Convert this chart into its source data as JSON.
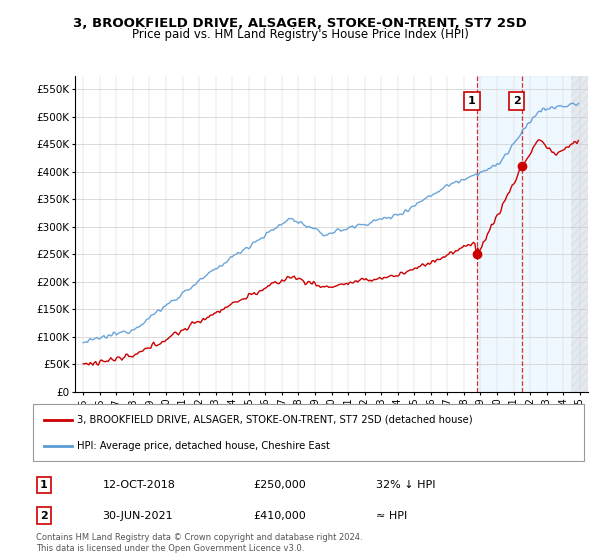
{
  "title": "3, BROOKFIELD DRIVE, ALSAGER, STOKE-ON-TRENT, ST7 2SD",
  "subtitle": "Price paid vs. HM Land Registry's House Price Index (HPI)",
  "ylabel_ticks": [
    "£0",
    "£50K",
    "£100K",
    "£150K",
    "£200K",
    "£250K",
    "£300K",
    "£350K",
    "£400K",
    "£450K",
    "£500K",
    "£550K"
  ],
  "ylim": [
    0,
    575000
  ],
  "xlim_start": 1994.5,
  "xlim_end": 2025.5,
  "hpi_color": "#5b9bd5",
  "sale_color": "#cc0000",
  "sale1_x": 2018.78,
  "sale1_y": 250000,
  "sale2_x": 2021.49,
  "sale2_y": 410000,
  "legend_sale": "3, BROOKFIELD DRIVE, ALSAGER, STOKE-ON-TRENT, ST7 2SD (detached house)",
  "legend_hpi": "HPI: Average price, detached house, Cheshire East",
  "table_row1": [
    "1",
    "12-OCT-2018",
    "£250,000",
    "32% ↓ HPI"
  ],
  "table_row2": [
    "2",
    "30-JUN-2021",
    "£410,000",
    "≈ HPI"
  ],
  "footnote": "Contains HM Land Registry data © Crown copyright and database right 2024.\nThis data is licensed under the Open Government Licence v3.0.",
  "background_color": "#ffffff",
  "grid_color": "#cccccc",
  "highlight_color": "#ddeeff",
  "hatch_start": 2024.5
}
